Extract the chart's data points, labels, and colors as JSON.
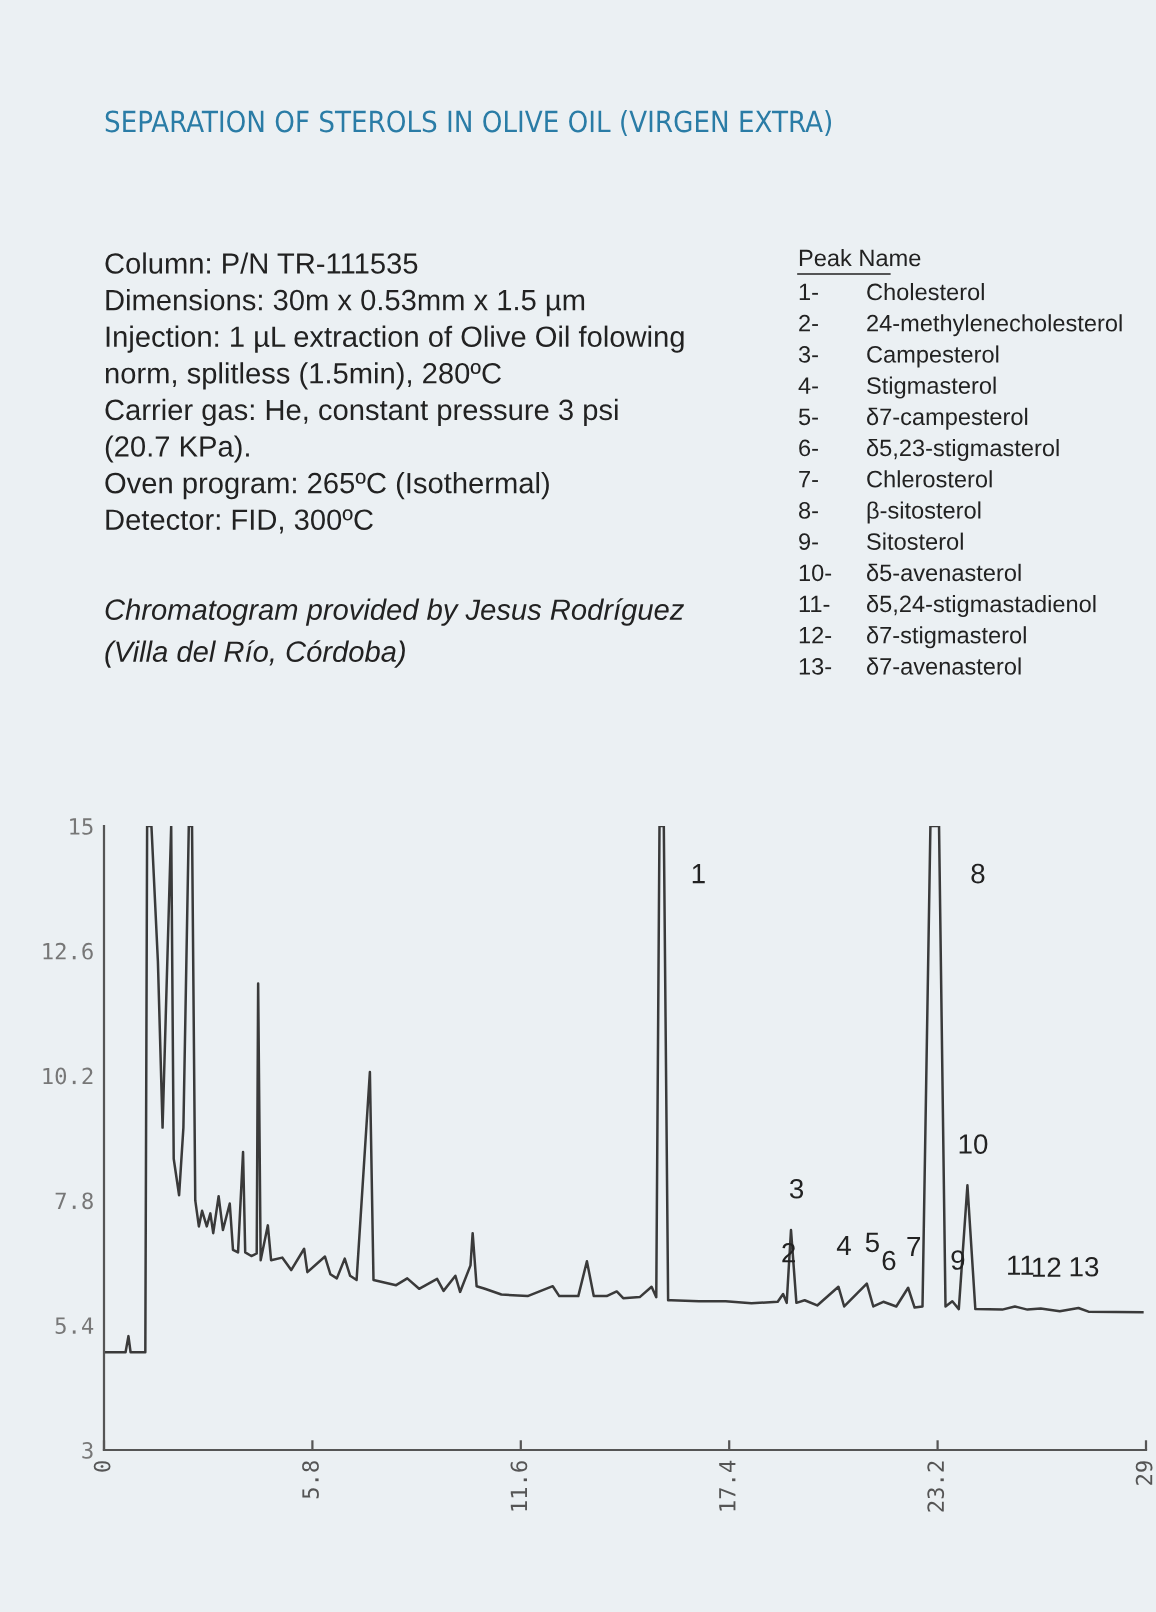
{
  "chart_data": {
    "type": "line",
    "title": "SEPARATION OF STEROLS IN OLIVE OIL (VIRGEN EXTRA)",
    "annotations": [
      "Column: P/N TR-111535",
      "Dimensions: 30m x 0.53mm x 1.5 µm",
      "Injection: 1 µL extraction of Olive Oil folowing",
      "norm, splitless (1.5min), 280ºC",
      "Carrier gas: He, constant pressure 3 psi",
      "(20.7 KPa).",
      "Oven program: 265ºC (Isothermal)",
      "Detector: FID, 300ºC",
      "Chromatogram provided by Jesus Rodríguez",
      "(Villa del Río, Córdoba)",
      "Peak Name",
      "1- Cholesterol",
      "2- 24-methylenecholesterol",
      "3- Campesterol",
      "4- Stigmasterol",
      "5- δ7-campesterol",
      "6- δ5,23-stigmasterol",
      "7- Chlerosterol",
      "8- β-sitosterol",
      "9- Sitosterol",
      "10- δ5-avenasterol",
      "11- δ5,24-stigmastadienol",
      "12- δ7-stigmasterol",
      "13- δ7-avenasterol",
      {
        "text": "1",
        "x": 15.46,
        "y": 15
      },
      {
        "text": "2",
        "x": 18.9,
        "y": 6.0
      },
      {
        "text": "3",
        "x": 19.12,
        "y": 7.23
      },
      {
        "text": "4",
        "x": 20.44,
        "y": 6.14
      },
      {
        "text": "5",
        "x": 21.23,
        "y": 6.2
      },
      {
        "text": "6",
        "x": 21.69,
        "y": 5.85
      },
      {
        "text": "7",
        "x": 22.38,
        "y": 6.12
      },
      {
        "text": "8",
        "x": 23.24,
        "y": 15
      },
      {
        "text": "9",
        "x": 23.61,
        "y": 5.86
      },
      {
        "text": "10",
        "x": 24.03,
        "y": 8.09
      },
      {
        "text": "11",
        "x": 25.35,
        "y": 5.76
      },
      {
        "text": "12",
        "x": 26.07,
        "y": 5.72
      },
      {
        "text": "13",
        "x": 27.12,
        "y": 5.73
      }
    ],
    "series": [
      {
        "color": "#3a3a3a",
        "x": [
          0,
          0.6,
          0.68,
          0.74,
          1.15,
          1.2,
          1.32,
          1.5,
          1.63,
          1.87,
          1.94,
          2.09,
          2.21,
          2.36,
          2.45,
          2.54,
          2.64,
          2.73,
          2.86,
          2.96,
          3.04,
          3.19,
          3.31,
          3.5,
          3.59,
          3.73,
          3.87,
          3.93,
          4.1,
          4.25,
          4.29,
          4.36,
          4.56,
          4.65,
          4.96,
          5.21,
          5.57,
          5.66,
          6.15,
          6.3,
          6.48,
          6.7,
          6.85,
          7.03,
          7.4,
          7.5,
          8.13,
          8.44,
          8.77,
          9.27,
          9.45,
          9.78,
          9.91,
          10.2,
          10.26,
          10.37,
          10.6,
          11.06,
          11.79,
          12.49,
          12.67,
          13.2,
          13.44,
          13.63,
          13.99,
          14.27,
          14.45,
          14.91,
          15.24,
          15.37,
          15.46,
          15.58,
          15.7,
          15.79,
          16.56,
          17.3,
          18.02,
          18.75,
          18.9,
          19.0,
          19.12,
          19.27,
          19.5,
          19.85,
          20.44,
          20.6,
          21.23,
          21.41,
          21.69,
          22.05,
          22.38,
          22.56,
          22.78,
          23.0,
          23.24,
          23.42,
          23.61,
          23.79,
          24.03,
          24.25,
          25.0,
          25.35,
          25.7,
          26.07,
          26.6,
          27.12,
          27.4,
          28.9
        ],
        "values": [
          4.88,
          4.88,
          5.19,
          4.88,
          4.88,
          15,
          15,
          12.4,
          9.2,
          15,
          8.6,
          7.9,
          9.2,
          15,
          15,
          7.8,
          7.3,
          7.6,
          7.3,
          7.55,
          7.17,
          7.88,
          7.23,
          7.74,
          6.85,
          6.8,
          8.73,
          6.8,
          6.73,
          6.78,
          11.97,
          6.65,
          7.32,
          6.65,
          6.7,
          6.46,
          6.87,
          6.42,
          6.72,
          6.38,
          6.3,
          6.68,
          6.35,
          6.27,
          10.27,
          6.27,
          6.17,
          6.3,
          6.1,
          6.29,
          6.06,
          6.35,
          6.04,
          6.55,
          7.17,
          6.15,
          6.1,
          5.99,
          5.96,
          6.15,
          5.96,
          5.96,
          6.63,
          5.96,
          5.96,
          6.05,
          5.92,
          5.94,
          6.14,
          5.94,
          15,
          15,
          5.88,
          5.88,
          5.86,
          5.86,
          5.82,
          5.85,
          6.0,
          5.83,
          7.23,
          5.83,
          5.88,
          5.78,
          6.14,
          5.76,
          6.2,
          5.76,
          5.85,
          5.76,
          6.12,
          5.74,
          5.76,
          15,
          15,
          5.76,
          5.86,
          5.71,
          8.09,
          5.71,
          5.7,
          5.76,
          5.7,
          5.72,
          5.67,
          5.73,
          5.66,
          5.65
        ]
      }
    ],
    "xlim": [
      0,
      29
    ],
    "xticks": [
      0,
      5.8,
      11.6,
      17.4,
      23.2,
      29
    ],
    "ylim": [
      3,
      15
    ],
    "yticks": [
      3,
      5.4,
      7.8,
      10.2,
      12.6,
      15
    ],
    "grid": false,
    "marker": "none",
    "line_style": "solid"
  }
}
